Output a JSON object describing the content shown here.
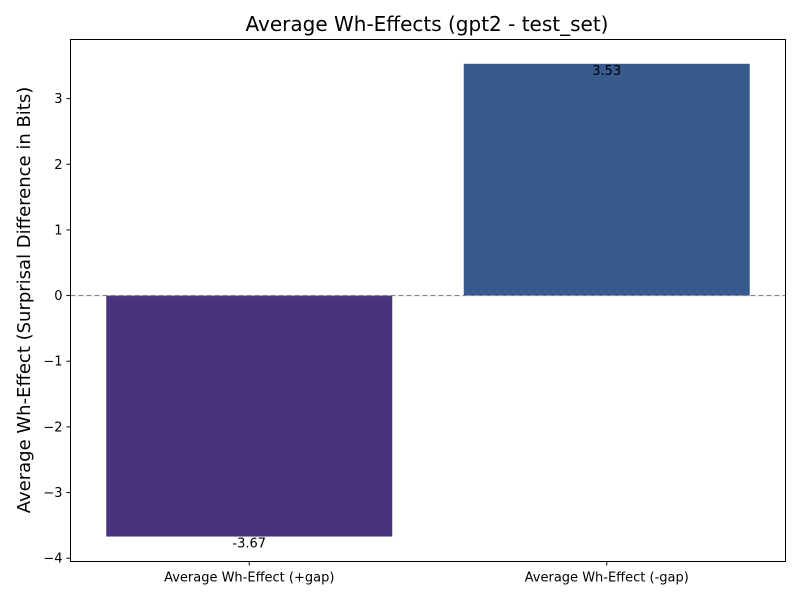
{
  "chart_data": {
    "type": "bar",
    "title": "Average Wh-Effects (gpt2 - test_set)",
    "xlabel": "",
    "ylabel": "Average Wh-Effect (Surprisal Difference in Bits)",
    "categories": [
      "Average Wh-Effect (+gap)",
      "Average Wh-Effect (-gap)"
    ],
    "values": [
      -3.67,
      3.53
    ],
    "data_labels": [
      "-3.67",
      "3.53"
    ],
    "colors": [
      "#48347c",
      "#375b8d"
    ],
    "ylim": [
      -4.05,
      3.9
    ],
    "yticks": [
      -4,
      -3,
      -2,
      -1,
      0,
      1,
      2,
      3
    ],
    "ytick_labels": [
      "−4",
      "−3",
      "−2",
      "−1",
      "0",
      "1",
      "2",
      "3"
    ],
    "reference_line": {
      "y": 0,
      "style": "dashed",
      "color": "#808080"
    },
    "grid": false,
    "legend": "none"
  }
}
